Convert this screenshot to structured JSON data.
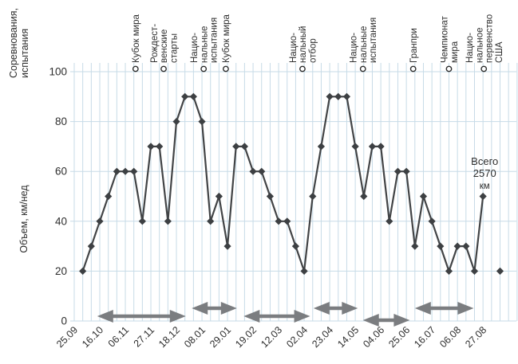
{
  "figure": {
    "secondary_axis_title_lines": [
      "Соревнования,",
      "испытания"
    ],
    "y_axis_title": "Объем, км/нед",
    "total_annotation": {
      "lines": [
        "Всего",
        "2570",
        "км"
      ],
      "week": 48.1,
      "total_km": 2570
    }
  },
  "chart_data": {
    "type": "line",
    "title": "",
    "xlabel": "",
    "ylabel": "Объем, км/нед",
    "secondary_axis_label": "Соревнования, испытания",
    "x_tick_labels": [
      "25.09",
      "16.10",
      "06.11",
      "27.11",
      "18.12",
      "08.01",
      "29.01",
      "19.02",
      "12.03",
      "02.04",
      "23.04",
      "14.05",
      "04.06",
      "25.06",
      "16.07",
      "06.08",
      "27.08"
    ],
    "x_tick_interval_weeks": 3,
    "y_ticks": [
      0,
      20,
      40,
      60,
      80,
      100
    ],
    "ylim": [
      0,
      100
    ],
    "grid": true,
    "series": [
      {
        "name": "Объем, км/нед",
        "start_week": 1,
        "values": [
          20,
          30,
          40,
          50,
          60,
          60,
          60,
          40,
          70,
          70,
          40,
          80,
          90,
          90,
          80,
          40,
          50,
          30,
          70,
          70,
          60,
          60,
          50,
          40,
          40,
          30,
          20,
          50,
          70,
          90,
          90,
          90,
          70,
          50,
          70,
          70,
          40,
          60,
          60,
          30,
          50,
          40,
          30,
          20,
          30,
          30,
          20,
          50
        ]
      }
    ],
    "isolated_point": {
      "week": 50,
      "value": 20
    },
    "total_km": 2570,
    "events": [
      {
        "week": 7.2,
        "lines": [
          "Кубок мира"
        ]
      },
      {
        "week": 10.5,
        "lines": [
          "Рождест-",
          "венские",
          "старты"
        ]
      },
      {
        "week": 15.2,
        "lines": [
          "Нацио-",
          "нальные",
          "испытания"
        ]
      },
      {
        "week": 17.8,
        "lines": [
          "Кубок мира"
        ]
      },
      {
        "week": 26.8,
        "lines": [
          "Нацио-",
          "нальный",
          "отбор"
        ]
      },
      {
        "week": 33.9,
        "lines": [
          "Нацио-",
          "нальные",
          "испытания"
        ]
      },
      {
        "week": 39.8,
        "lines": [
          "Гранпри"
        ]
      },
      {
        "week": 44.0,
        "lines": [
          "Чемпионат",
          "мира"
        ]
      },
      {
        "week": 48.1,
        "lines": [
          "Нацио-",
          "нальное",
          "первенство",
          "США"
        ]
      }
    ],
    "period_arrows": [
      {
        "from_week": 2.7,
        "to_week": 13.1,
        "row": "low"
      },
      {
        "from_week": 13.8,
        "to_week": 19.1,
        "row": "high"
      },
      {
        "from_week": 19.9,
        "to_week": 27.7,
        "row": "low"
      },
      {
        "from_week": 28.1,
        "to_week": 33.3,
        "row": "high"
      },
      {
        "from_week": 33.9,
        "to_week": 39.4,
        "row": "lower"
      },
      {
        "from_week": 40.0,
        "to_week": 46.9,
        "row": "high"
      }
    ]
  },
  "style": {
    "background": "#ffffff",
    "grid_color": "#c7dbe7",
    "line_color": "#424446",
    "marker_color": "#3d4043",
    "arrow_color": "#7b7d80",
    "text_color": "#2e2e2e",
    "event_circle_stroke": "#2e2e2e",
    "event_circle_fill": "#ffffff"
  }
}
